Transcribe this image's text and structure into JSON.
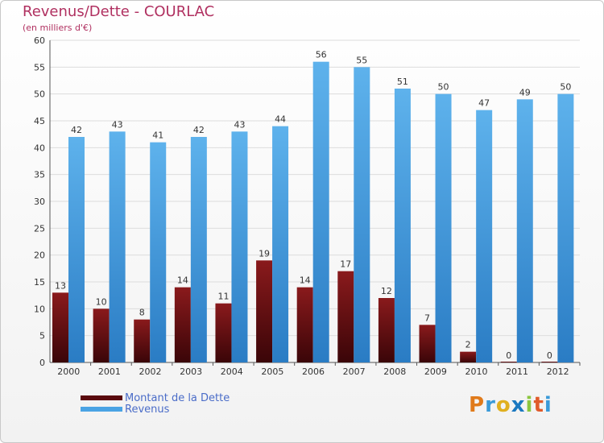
{
  "title": "Revenus/Dette - COURLAC",
  "subtitle": "(en milliers d'€)",
  "logo_text": "Proxiti",
  "colors": {
    "dette": "#7a1015",
    "revenus": "#4aa3e4",
    "title": "#b03060",
    "legend_text": "#4a6cc8"
  },
  "legend": [
    {
      "label": "Montant de la Dette",
      "color": "#7a1015"
    },
    {
      "label": "Revenus",
      "color": "#4aa3e4"
    }
  ],
  "chart_data": {
    "type": "bar",
    "title": "Revenus/Dette - COURLAC",
    "subtitle": "(en milliers d'€)",
    "categories": [
      "2000",
      "2001",
      "2002",
      "2003",
      "2004",
      "2005",
      "2006",
      "2007",
      "2008",
      "2009",
      "2010",
      "2011",
      "2012"
    ],
    "series": [
      {
        "name": "Montant de la Dette",
        "values": [
          13,
          10,
          8,
          14,
          11,
          19,
          14,
          17,
          12,
          7,
          2,
          0,
          0
        ]
      },
      {
        "name": "Revenus",
        "values": [
          42,
          43,
          41,
          42,
          43,
          44,
          56,
          55,
          51,
          50,
          47,
          49,
          50
        ]
      }
    ],
    "ylim": [
      0,
      60
    ],
    "yticks": [
      0,
      5,
      10,
      15,
      20,
      25,
      30,
      35,
      40,
      45,
      50,
      55,
      60
    ],
    "grid": true,
    "legend_position": "bottom-left"
  }
}
